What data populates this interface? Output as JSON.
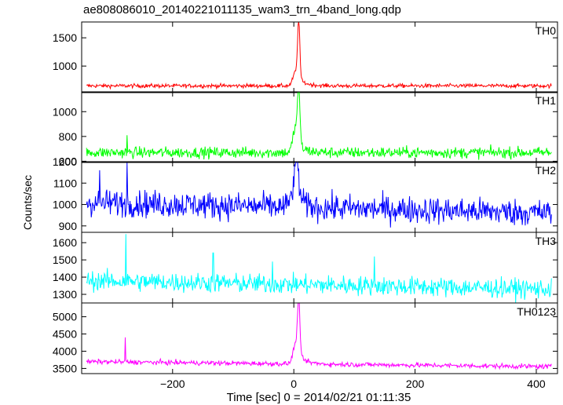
{
  "chart_data": {
    "type": "line",
    "title": "ae808086010_20140221011135_wam3_trn_4band_long.qdp",
    "xlabel": "Time [sec] 0 = 2014/02/21 01:11:35",
    "ylabel": "Counts/sec",
    "xlim": [
      -350,
      435
    ],
    "xticks": [
      -200,
      0,
      200,
      400
    ],
    "xtick_labels": [
      "−200",
      "0",
      "200",
      "400"
    ],
    "panels": [
      {
        "name": "TH0",
        "color": "#ff0000",
        "ylim": [
          530,
          1780
        ],
        "yticks": [
          1000,
          1500
        ],
        "baseline": 650,
        "noise": 25,
        "peak": {
          "x": 8,
          "y": 1690,
          "width": 2.5
        },
        "bump": {
          "x": 3,
          "y": 900,
          "width": 6
        },
        "tail": 120,
        "spikes": []
      },
      {
        "name": "TH1",
        "color": "#00ff00",
        "ylim": [
          590,
          1160
        ],
        "yticks": [
          600,
          800,
          1000
        ],
        "baseline": 670,
        "noise": 32,
        "peak": {
          "x": 8,
          "y": 1130,
          "width": 2.5
        },
        "bump": {
          "x": 3,
          "y": 880,
          "width": 6
        },
        "tail": 60,
        "spikes": [
          {
            "x": -275,
            "y": 810
          }
        ]
      },
      {
        "name": "TH2",
        "color": "#0000ff",
        "ylim": [
          870,
          1200
        ],
        "yticks": [
          900,
          1000,
          1100,
          1200
        ],
        "baseline": 1010,
        "noise": 45,
        "trend": -50,
        "peak": {
          "x": 5,
          "y": 1195,
          "width": 3
        },
        "bump": {
          "x": 2,
          "y": 1120,
          "width": 8
        },
        "tail": 30,
        "spikes": [
          {
            "x": -275,
            "y": 1195
          },
          {
            "x": -320,
            "y": 1160
          }
        ]
      },
      {
        "name": "TH3",
        "color": "#00ffff",
        "ylim": [
          1250,
          1660
        ],
        "yticks": [
          1300,
          1400,
          1500,
          1600
        ],
        "baseline": 1380,
        "noise": 40,
        "trend": -50,
        "peak": null,
        "bump": null,
        "tail": 0,
        "spikes": [
          {
            "x": -277,
            "y": 1650
          },
          {
            "x": -133,
            "y": 1540
          },
          {
            "x": 133,
            "y": 1520
          },
          {
            "x": -35,
            "y": 1490
          }
        ]
      },
      {
        "name": "TH0123",
        "color": "#ff00ff",
        "ylim": [
          3350,
          5400
        ],
        "yticks": [
          3500,
          4000,
          4500,
          5000
        ],
        "baseline": 3700,
        "noise": 50,
        "trend": -150,
        "peak": {
          "x": 8,
          "y": 5400,
          "width": 2.5
        },
        "bump": {
          "x": 3,
          "y": 4300,
          "width": 6
        },
        "tail": 250,
        "spikes": [
          {
            "x": -278,
            "y": 4400
          }
        ]
      }
    ]
  }
}
